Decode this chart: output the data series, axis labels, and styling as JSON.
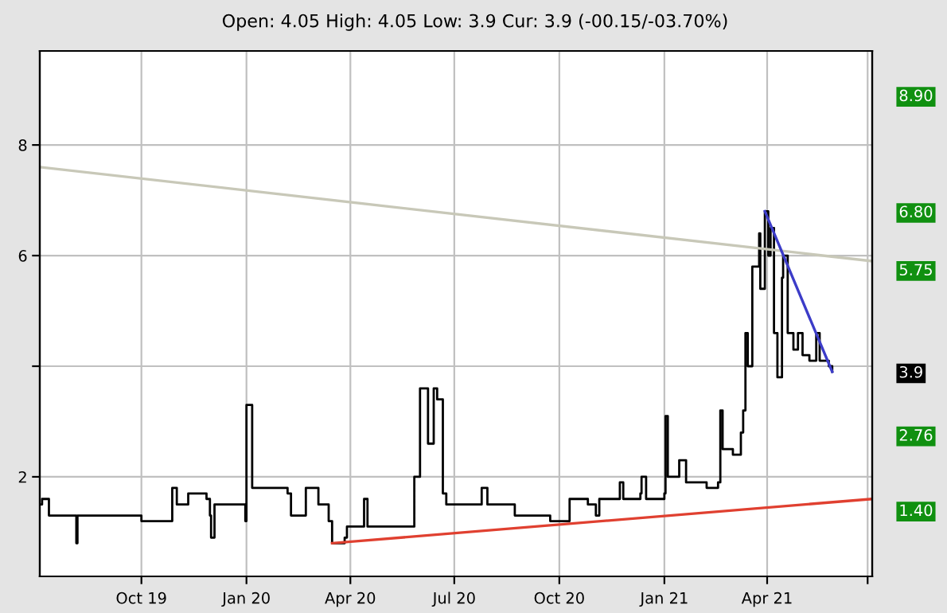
{
  "chart_data": {
    "type": "step",
    "title": "Open: 4.05 High: 4.05 Low: 3.9 Cur: 3.9 (-00.15/-03.70%)",
    "series": [
      {
        "color": "#000000",
        "x": [
          "2019-07-04",
          "2019-07-06",
          "2019-07-12",
          "2019-08-01",
          "2019-08-05",
          "2019-08-06",
          "2019-09-11",
          "2019-10-01",
          "2019-10-22",
          "2019-10-28",
          "2019-11-01",
          "2019-11-11",
          "2019-11-27",
          "2019-11-30",
          "2019-12-01",
          "2019-12-04",
          "2019-12-31",
          "2020-01-01",
          "2020-01-06",
          "2020-02-06",
          "2020-02-09",
          "2020-02-22",
          "2020-03-04",
          "2020-03-13",
          "2020-03-16",
          "2020-03-27",
          "2020-03-29",
          "2020-04-09",
          "2020-04-13",
          "2020-04-16",
          "2020-05-24",
          "2020-05-27",
          "2020-06-01",
          "2020-06-08",
          "2020-06-13",
          "2020-06-16",
          "2020-06-21",
          "2020-06-24",
          "2020-07-15",
          "2020-07-25",
          "2020-07-30",
          "2020-08-20",
          "2020-08-23",
          "2020-09-12",
          "2020-09-23",
          "2020-10-10",
          "2020-10-26",
          "2020-11-02",
          "2020-11-05",
          "2020-11-21",
          "2020-11-23",
          "2020-11-26",
          "2020-12-11",
          "2020-12-12",
          "2020-12-16",
          "2021-01-01",
          "2021-01-02",
          "2021-01-04",
          "2021-01-14",
          "2021-01-20",
          "2021-02-05",
          "2021-02-07",
          "2021-02-17",
          "2021-02-19",
          "2021-02-21",
          "2021-03-02",
          "2021-03-09",
          "2021-03-11",
          "2021-03-13",
          "2021-03-15",
          "2021-03-19",
          "2021-03-25",
          "2021-03-26",
          "2021-03-30",
          "2021-04-02",
          "2021-04-04",
          "2021-04-07",
          "2021-04-10",
          "2021-04-14",
          "2021-04-15",
          "2021-04-19",
          "2021-04-24",
          "2021-04-28",
          "2021-05-02",
          "2021-05-08",
          "2021-05-14",
          "2021-05-17",
          "2021-05-25",
          "2021-05-28"
        ],
        "values": [
          1.5,
          1.6,
          1.3,
          1.3,
          0.8,
          1.3,
          1.3,
          1.2,
          1.2,
          1.8,
          1.5,
          1.7,
          1.6,
          1.3,
          0.9,
          1.5,
          1.2,
          3.3,
          1.8,
          1.7,
          1.3,
          1.8,
          1.5,
          1.2,
          0.8,
          0.9,
          1.1,
          1.1,
          1.6,
          1.1,
          1.1,
          2.0,
          3.6,
          2.6,
          3.6,
          3.4,
          1.7,
          1.5,
          1.5,
          1.8,
          1.5,
          1.5,
          1.3,
          1.3,
          1.2,
          1.6,
          1.5,
          1.3,
          1.6,
          1.6,
          1.9,
          1.6,
          1.7,
          2.0,
          1.6,
          1.7,
          3.1,
          2.0,
          2.3,
          1.9,
          1.9,
          1.8,
          1.9,
          3.2,
          2.5,
          2.4,
          2.8,
          3.2,
          4.6,
          4.0,
          5.8,
          6.4,
          5.4,
          6.8,
          6.0,
          6.5,
          4.6,
          3.8,
          5.6,
          6.0,
          4.6,
          4.3,
          4.6,
          4.2,
          4.1,
          4.6,
          4.1,
          4.0,
          3.9
        ]
      },
      {
        "type": "line",
        "color": "#c8c8b8",
        "x": [
          "2019-07-04",
          "2021-07-02"
        ],
        "values": [
          7.6,
          5.9
        ]
      },
      {
        "type": "line",
        "color": "#e04030",
        "x": [
          "2020-03-16",
          "2021-07-02"
        ],
        "values": [
          0.8,
          1.6
        ]
      },
      {
        "type": "line",
        "color": "#3c3cc8",
        "x": [
          "2021-03-30",
          "2021-05-28"
        ],
        "values": [
          6.8,
          3.9
        ]
      }
    ],
    "xlim": [
      "2019-07-04",
      "2021-07-02"
    ],
    "xticks": [
      {
        "value": "2019-10-01",
        "label": "Oct 19"
      },
      {
        "value": "2020-01-01",
        "label": "Jan 20"
      },
      {
        "value": "2020-04-01",
        "label": "Apr 20"
      },
      {
        "value": "2020-07-01",
        "label": "Jul 20"
      },
      {
        "value": "2020-10-01",
        "label": "Oct 20"
      },
      {
        "value": "2021-01-01",
        "label": "Jan 21"
      },
      {
        "value": "2021-04-01",
        "label": "Apr 21"
      },
      {
        "value": "2021-06-28",
        "label": null
      }
    ],
    "ylim": [
      0.2,
      9.7
    ],
    "yticks": [
      2,
      {
        "value": 4,
        "label": null
      },
      6,
      8
    ],
    "grid": true,
    "y2lim": [
      0.2,
      9.7
    ],
    "y2ticks": [
      {
        "value": 8.9,
        "label": "8.90"
      },
      {
        "value": 6.8,
        "label": "6.80"
      },
      {
        "value": 5.75,
        "label": "5.75"
      },
      3.9,
      {
        "value": 2.76,
        "label": "2.76"
      },
      {
        "value": 1.4,
        "label": "1.40"
      }
    ]
  }
}
